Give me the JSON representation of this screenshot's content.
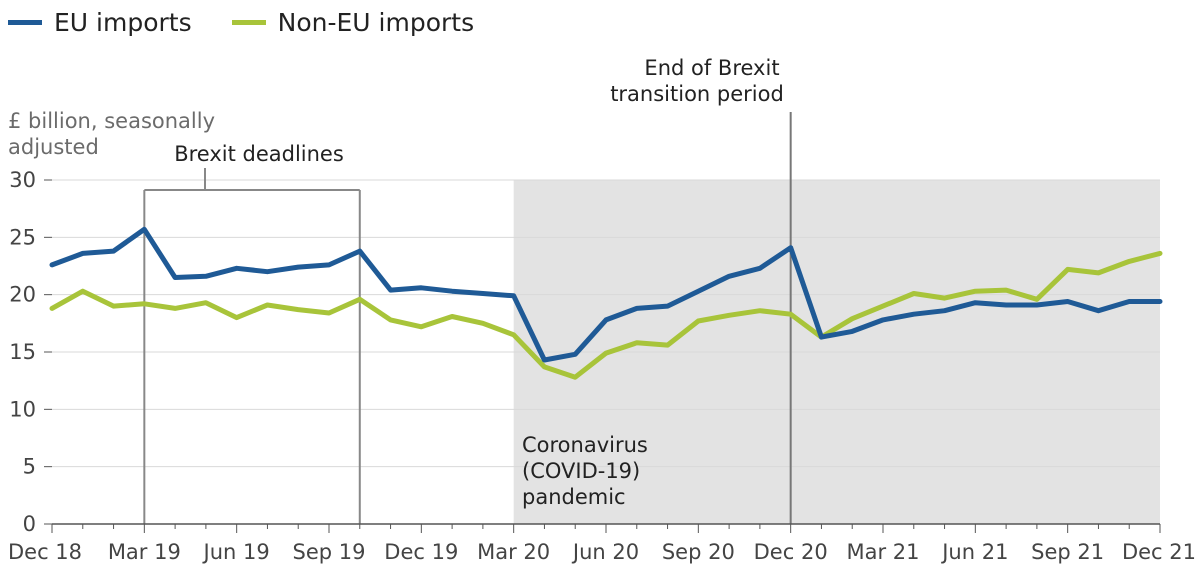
{
  "chart_data": {
    "type": "line",
    "ylabel": "£ billion, seasonally adjusted",
    "ylim": [
      0,
      30
    ],
    "yticks": [
      0,
      5,
      10,
      15,
      20,
      25,
      30
    ],
    "x_tick_labels": [
      "Dec 18",
      "Mar 19",
      "Jun 19",
      "Sep 19",
      "Dec 19",
      "Mar 20",
      "Jun 20",
      "Sep 20",
      "Dec 20",
      "Mar 21",
      "Jun 21",
      "Sep 21",
      "Dec 21"
    ],
    "x": [
      "Dec 18",
      "Jan 19",
      "Feb 19",
      "Mar 19",
      "Apr 19",
      "May 19",
      "Jun 19",
      "Jul 19",
      "Aug 19",
      "Sep 19",
      "Oct 19",
      "Nov 19",
      "Dec 19",
      "Jan 20",
      "Feb 20",
      "Mar 20",
      "Apr 20",
      "May 20",
      "Jun 20",
      "Jul 20",
      "Aug 20",
      "Sep 20",
      "Oct 20",
      "Nov 20",
      "Dec 20",
      "Jan 21",
      "Feb 21",
      "Mar 21",
      "Apr 21",
      "May 21",
      "Jun 21",
      "Jul 21",
      "Aug 21",
      "Sep 21",
      "Oct 21",
      "Nov 21",
      "Dec 21"
    ],
    "series": [
      {
        "name": "EU imports",
        "color": "#1f5a96",
        "values": [
          22.6,
          23.6,
          23.8,
          25.7,
          21.5,
          21.6,
          22.3,
          22.0,
          22.4,
          22.6,
          23.8,
          20.4,
          20.6,
          20.3,
          20.1,
          19.9,
          14.3,
          14.8,
          17.8,
          18.8,
          19.0,
          20.3,
          21.6,
          22.3,
          24.1,
          16.3,
          16.8,
          17.8,
          18.3,
          18.6,
          19.3,
          19.1,
          19.1,
          19.4,
          18.6,
          19.4,
          19.4
        ]
      },
      {
        "name": "Non-EU imports",
        "color": "#a8c43a",
        "values": [
          18.8,
          20.3,
          19.0,
          19.2,
          18.8,
          19.3,
          18.0,
          19.1,
          18.7,
          18.4,
          19.6,
          17.8,
          17.2,
          18.1,
          17.5,
          16.5,
          13.7,
          12.8,
          14.9,
          15.8,
          15.6,
          17.7,
          18.2,
          18.6,
          18.3,
          16.3,
          17.9,
          19.0,
          20.1,
          19.7,
          20.3,
          20.4,
          19.6,
          22.2,
          21.9,
          22.9,
          23.6
        ]
      }
    ],
    "annotations": {
      "brexit_deadlines": {
        "label": "Brexit deadlines",
        "from": "Mar 19",
        "to": "Oct 19"
      },
      "transition": {
        "label_line1": "End of Brexit",
        "label_line2": "transition period",
        "at": "Dec 20"
      },
      "pandemic": {
        "label_line1": "Coronavirus",
        "label_line2": "(COVID-19)",
        "label_line3": "pandemic",
        "from": "Mar 20",
        "to": "Dec 21"
      }
    },
    "ylabel_line1": "£ billion, seasonally",
    "ylabel_line2": "adjusted",
    "legend_position": "top-left",
    "grid": true
  }
}
